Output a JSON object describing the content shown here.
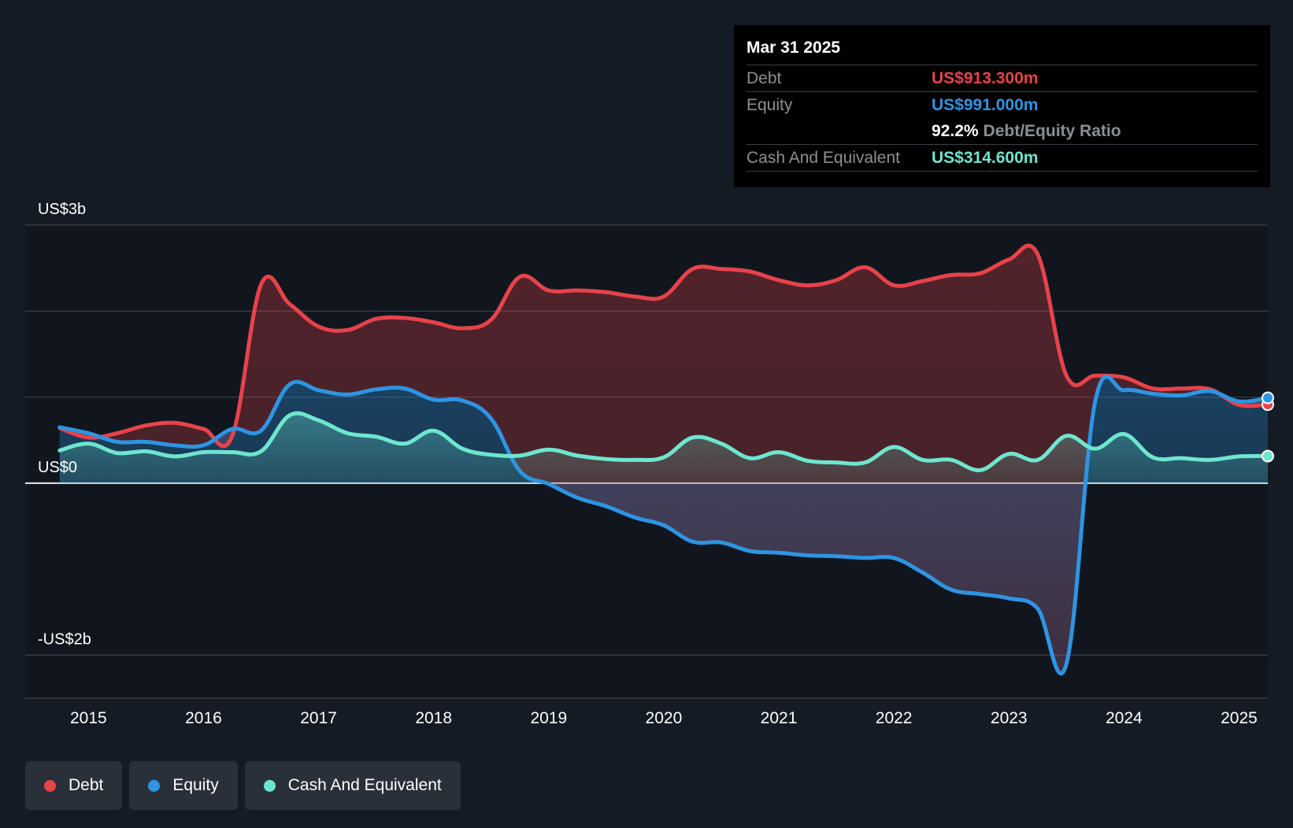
{
  "colors": {
    "debt": "#e8424a",
    "equity": "#2d95e3",
    "cash": "#6ee6cf",
    "background": "#151b24",
    "plot_background": "#11161e",
    "grid": "#3a414b"
  },
  "tooltip": {
    "date": "Mar 31 2025",
    "debt_label": "Debt",
    "debt_value": "US$913.300m",
    "equity_label": "Equity",
    "equity_value": "US$991.000m",
    "ratio_value": "92.2%",
    "ratio_label": "Debt/Equity Ratio",
    "cash_label": "Cash And Equivalent",
    "cash_value": "US$314.600m"
  },
  "legend": [
    {
      "label": "Debt",
      "color": "#e8424a"
    },
    {
      "label": "Equity",
      "color": "#2d95e3"
    },
    {
      "label": "Cash And Equivalent",
      "color": "#6ee6cf"
    }
  ],
  "chart_data": {
    "type": "line",
    "xlim": [
      2014.45,
      2025.25
    ],
    "ylim": [
      -2.5,
      3.0
    ],
    "y_ticks": [
      {
        "value": 3,
        "label": "US$3b"
      },
      {
        "value": 0,
        "label": "US$0"
      },
      {
        "value": -2,
        "label": "-US$2b"
      }
    ],
    "y_gridlines": [
      3,
      2,
      1,
      0,
      -2
    ],
    "x_ticks": [
      {
        "value": 2015,
        "label": "2015"
      },
      {
        "value": 2016,
        "label": "2016"
      },
      {
        "value": 2017,
        "label": "2017"
      },
      {
        "value": 2018,
        "label": "2018"
      },
      {
        "value": 2019,
        "label": "2019"
      },
      {
        "value": 2020,
        "label": "2020"
      },
      {
        "value": 2021,
        "label": "2021"
      },
      {
        "value": 2022,
        "label": "2022"
      },
      {
        "value": 2023,
        "label": "2023"
      },
      {
        "value": 2024,
        "label": "2024"
      },
      {
        "value": 2025,
        "label": "2025"
      }
    ],
    "series": [
      {
        "name": "Debt",
        "key": "debt",
        "points": [
          [
            2014.75,
            0.64
          ],
          [
            2015.0,
            0.53
          ],
          [
            2015.25,
            0.58
          ],
          [
            2015.5,
            0.67
          ],
          [
            2015.75,
            0.7
          ],
          [
            2016.0,
            0.63
          ],
          [
            2016.25,
            0.55
          ],
          [
            2016.5,
            2.31
          ],
          [
            2016.75,
            2.08
          ],
          [
            2017.0,
            1.82
          ],
          [
            2017.25,
            1.78
          ],
          [
            2017.5,
            1.91
          ],
          [
            2017.75,
            1.92
          ],
          [
            2018.0,
            1.87
          ],
          [
            2018.25,
            1.8
          ],
          [
            2018.5,
            1.9
          ],
          [
            2018.75,
            2.4
          ],
          [
            2019.0,
            2.24
          ],
          [
            2019.25,
            2.24
          ],
          [
            2019.5,
            2.22
          ],
          [
            2019.75,
            2.17
          ],
          [
            2020.0,
            2.17
          ],
          [
            2020.25,
            2.49
          ],
          [
            2020.5,
            2.49
          ],
          [
            2020.75,
            2.46
          ],
          [
            2021.0,
            2.36
          ],
          [
            2021.25,
            2.3
          ],
          [
            2021.5,
            2.36
          ],
          [
            2021.75,
            2.51
          ],
          [
            2022.0,
            2.3
          ],
          [
            2022.25,
            2.35
          ],
          [
            2022.5,
            2.42
          ],
          [
            2022.75,
            2.44
          ],
          [
            2023.0,
            2.6
          ],
          [
            2023.25,
            2.66
          ],
          [
            2023.5,
            1.25
          ],
          [
            2023.75,
            1.25
          ],
          [
            2024.0,
            1.23
          ],
          [
            2024.25,
            1.1
          ],
          [
            2024.5,
            1.1
          ],
          [
            2024.75,
            1.09
          ],
          [
            2025.0,
            0.91
          ],
          [
            2025.25,
            0.913
          ]
        ]
      },
      {
        "name": "Equity",
        "key": "equity",
        "points": [
          [
            2014.75,
            0.65
          ],
          [
            2015.0,
            0.58
          ],
          [
            2015.25,
            0.48
          ],
          [
            2015.5,
            0.48
          ],
          [
            2015.75,
            0.44
          ],
          [
            2016.0,
            0.44
          ],
          [
            2016.25,
            0.63
          ],
          [
            2016.5,
            0.61
          ],
          [
            2016.75,
            1.15
          ],
          [
            2017.0,
            1.08
          ],
          [
            2017.25,
            1.03
          ],
          [
            2017.5,
            1.09
          ],
          [
            2017.75,
            1.1
          ],
          [
            2018.0,
            0.97
          ],
          [
            2018.25,
            0.96
          ],
          [
            2018.5,
            0.75
          ],
          [
            2018.75,
            0.14
          ],
          [
            2019.0,
            -0.01
          ],
          [
            2019.25,
            -0.17
          ],
          [
            2019.5,
            -0.27
          ],
          [
            2019.75,
            -0.4
          ],
          [
            2020.0,
            -0.49
          ],
          [
            2020.25,
            -0.68
          ],
          [
            2020.5,
            -0.69
          ],
          [
            2020.75,
            -0.79
          ],
          [
            2021.0,
            -0.81
          ],
          [
            2021.25,
            -0.84
          ],
          [
            2021.5,
            -0.85
          ],
          [
            2021.75,
            -0.87
          ],
          [
            2022.0,
            -0.87
          ],
          [
            2022.25,
            -1.04
          ],
          [
            2022.5,
            -1.24
          ],
          [
            2022.75,
            -1.29
          ],
          [
            2023.0,
            -1.34
          ],
          [
            2023.25,
            -1.46
          ],
          [
            2023.5,
            -2.1
          ],
          [
            2023.75,
            0.95
          ],
          [
            2024.0,
            1.08
          ],
          [
            2024.25,
            1.04
          ],
          [
            2024.5,
            1.02
          ],
          [
            2024.75,
            1.07
          ],
          [
            2025.0,
            0.95
          ],
          [
            2025.25,
            0.991
          ]
        ]
      },
      {
        "name": "Cash And Equivalent",
        "key": "cash",
        "points": [
          [
            2014.75,
            0.38
          ],
          [
            2015.0,
            0.46
          ],
          [
            2015.25,
            0.35
          ],
          [
            2015.5,
            0.37
          ],
          [
            2015.75,
            0.31
          ],
          [
            2016.0,
            0.36
          ],
          [
            2016.25,
            0.36
          ],
          [
            2016.5,
            0.37
          ],
          [
            2016.75,
            0.79
          ],
          [
            2017.0,
            0.73
          ],
          [
            2017.25,
            0.58
          ],
          [
            2017.5,
            0.54
          ],
          [
            2017.75,
            0.46
          ],
          [
            2018.0,
            0.61
          ],
          [
            2018.25,
            0.4
          ],
          [
            2018.5,
            0.33
          ],
          [
            2018.75,
            0.32
          ],
          [
            2019.0,
            0.39
          ],
          [
            2019.25,
            0.32
          ],
          [
            2019.5,
            0.28
          ],
          [
            2019.75,
            0.27
          ],
          [
            2020.0,
            0.3
          ],
          [
            2020.25,
            0.53
          ],
          [
            2020.5,
            0.46
          ],
          [
            2020.75,
            0.29
          ],
          [
            2021.0,
            0.36
          ],
          [
            2021.25,
            0.26
          ],
          [
            2021.5,
            0.24
          ],
          [
            2021.75,
            0.24
          ],
          [
            2022.0,
            0.42
          ],
          [
            2022.25,
            0.27
          ],
          [
            2022.5,
            0.27
          ],
          [
            2022.75,
            0.15
          ],
          [
            2023.0,
            0.34
          ],
          [
            2023.25,
            0.27
          ],
          [
            2023.5,
            0.55
          ],
          [
            2023.75,
            0.4
          ],
          [
            2024.0,
            0.57
          ],
          [
            2024.25,
            0.3
          ],
          [
            2024.5,
            0.29
          ],
          [
            2024.75,
            0.27
          ],
          [
            2025.0,
            0.31
          ],
          [
            2025.25,
            0.3146
          ]
        ]
      }
    ]
  }
}
